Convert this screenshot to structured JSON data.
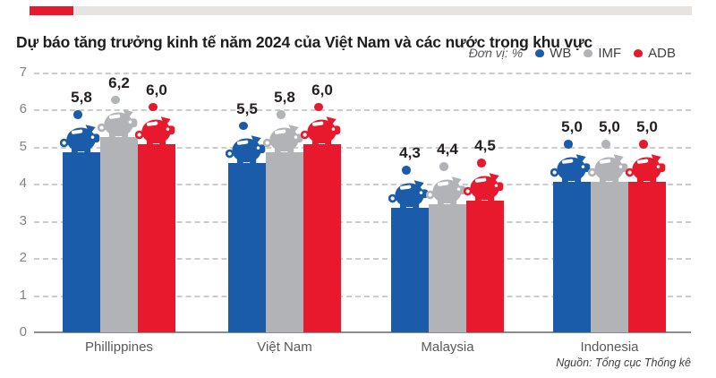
{
  "header": {
    "title": "Dự báo tăng trưởng kinh tế năm 2024 của Việt Nam và các nước trong khu vực",
    "accent_color": "#e8192c",
    "strip_color": "#e6e3e0"
  },
  "legend": {
    "unit_label": "Đơn vị: %",
    "position": "top-right"
  },
  "chart_data": {
    "type": "bar",
    "title": "Dự báo tăng trưởng kinh tế năm 2024 của Việt Nam và các nước trong khu vực",
    "unit": "%",
    "categories": [
      "Phillippines",
      "Việt Nam",
      "Malaysia",
      "Indonesia"
    ],
    "series": [
      {
        "name": "WB",
        "color": "#1b5caa",
        "values": [
          5.8,
          5.5,
          4.3,
          5.0
        ]
      },
      {
        "name": "IMF",
        "color": "#b1b3b6",
        "values": [
          6.2,
          5.8,
          4.4,
          5.0
        ]
      },
      {
        "name": "ADB",
        "color": "#e8192c",
        "values": [
          6.0,
          6.0,
          4.5,
          5.0
        ]
      }
    ],
    "value_labels": [
      [
        "5,8",
        "6,2",
        "6,0"
      ],
      [
        "5,5",
        "5,8",
        "6,0"
      ],
      [
        "4,3",
        "4,4",
        "4,5"
      ],
      [
        "5,0",
        "5,0",
        "5,0"
      ]
    ],
    "ylim": [
      0,
      7
    ],
    "yticks": [
      "0",
      "1",
      "2",
      "3",
      "4",
      "5",
      "6",
      "7"
    ],
    "grid": "horizontal-dashed",
    "legend_position": "top-right",
    "marker_icon": "piggy-bank-with-coin"
  },
  "footer": {
    "source": "Nguồn: Tổng cục Thống kê"
  }
}
